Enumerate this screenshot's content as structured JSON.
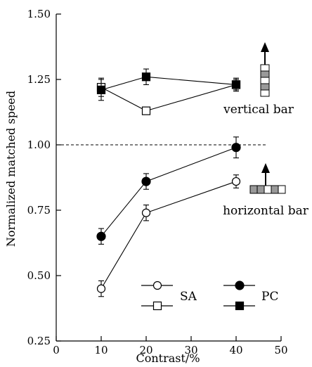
{
  "chart_data": {
    "type": "line",
    "xlabel": "Contrast/%",
    "ylabel": "Normalized matched speed",
    "xlim": [
      0,
      50
    ],
    "ylim": [
      0.25,
      1.5
    ],
    "x_ticks": [
      "0",
      "10",
      "20",
      "30",
      "40",
      "50"
    ],
    "y_ticks": [
      "0.25",
      "0.50",
      "0.75",
      "1.00",
      "1.25",
      "1.50"
    ],
    "grid": false,
    "reference_line": {
      "y": 1.0,
      "style": "dashed"
    },
    "series": [
      {
        "name": "SA",
        "group": "horizontal bar",
        "marker": "circle-open",
        "x": [
          10,
          20,
          40
        ],
        "y": [
          0.45,
          0.74,
          0.86
        ],
        "err": [
          0.03,
          0.03,
          0.025
        ]
      },
      {
        "name": "PC",
        "group": "horizontal bar",
        "marker": "circle-filled",
        "x": [
          10,
          20,
          40
        ],
        "y": [
          0.65,
          0.86,
          0.99
        ],
        "err": [
          0.03,
          0.03,
          0.04
        ]
      },
      {
        "name": "SA",
        "group": "vertical bar",
        "marker": "square-open",
        "x": [
          10,
          20,
          40
        ],
        "y": [
          1.22,
          1.13,
          1.23
        ],
        "err": [
          0.035,
          0.0,
          0.025
        ]
      },
      {
        "name": "PC",
        "group": "vertical bar",
        "marker": "square-filled",
        "x": [
          10,
          20,
          40
        ],
        "y": [
          1.21,
          1.26,
          1.23
        ],
        "err": [
          0.04,
          0.03,
          0.02
        ]
      }
    ],
    "annotations": [
      "vertical bar",
      "horizontal bar"
    ],
    "legend": {
      "placement": "bottom-right",
      "labels": [
        "SA",
        "PC"
      ]
    }
  }
}
